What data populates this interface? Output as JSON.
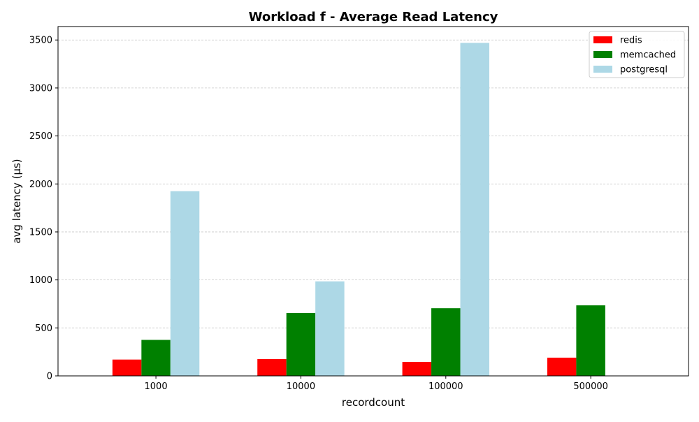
{
  "chart_data": {
    "type": "bar",
    "title": "Workload f - Average Read Latency",
    "xlabel": "recordcount",
    "ylabel": "avg latency (µs)",
    "categories": [
      "1000",
      "10000",
      "100000",
      "500000"
    ],
    "series": [
      {
        "name": "redis",
        "color": "#ff0000",
        "values": [
          170,
          175,
          145,
          190
        ]
      },
      {
        "name": "memcached",
        "color": "#008000",
        "values": [
          375,
          655,
          705,
          735
        ]
      },
      {
        "name": "postgresql",
        "color": "#add8e6",
        "values": [
          1925,
          985,
          3470,
          null
        ]
      }
    ],
    "ylim": [
      0,
      3640
    ],
    "yticks": [
      0,
      500,
      1000,
      1500,
      2000,
      2500,
      3000,
      3500
    ],
    "grid": "y-dashed",
    "legend_position": "top-right"
  }
}
